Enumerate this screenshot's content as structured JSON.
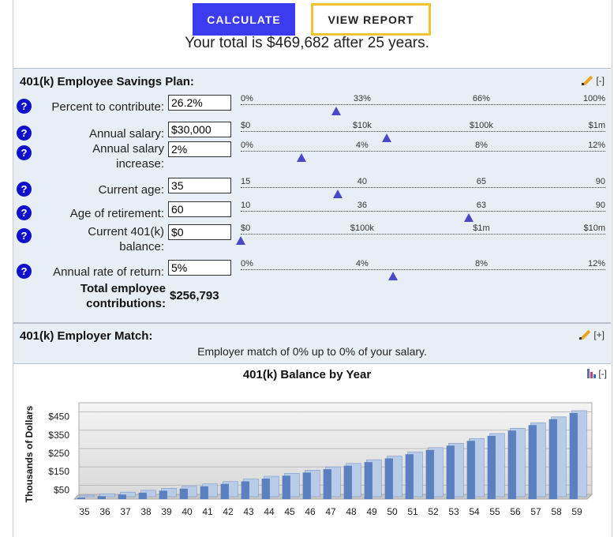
{
  "buttons": {
    "calculate": "CALCULATE",
    "view_report": "VIEW REPORT"
  },
  "summary": "Your total is $469,682 after 25 years.",
  "savings": {
    "title": "401(k) Employee Savings Plan:",
    "toggle": "[-]",
    "fields": [
      {
        "label": "Percent to contribute:",
        "value": "26.2%",
        "ticks": [
          "0%",
          "33%",
          "66%",
          "100%"
        ],
        "position": 0.262
      },
      {
        "label": "Annual salary:",
        "value": "$30,000",
        "ticks": [
          "$0",
          "$10k",
          "$100k",
          "$1m"
        ],
        "position": 0.4
      },
      {
        "label": "Annual salary increase:",
        "value": "2%",
        "ticks": [
          "0%",
          "4%",
          "8%",
          "12%"
        ],
        "position": 0.1667
      },
      {
        "label": "Current age:",
        "value": "35",
        "ticks": [
          "15",
          "40",
          "65",
          "90"
        ],
        "position": 0.2667
      },
      {
        "label": "Age of retirement:",
        "value": "60",
        "ticks": [
          "10",
          "36",
          "63",
          "90"
        ],
        "position": 0.625
      },
      {
        "label": "Current 401(k) balance:",
        "value": "$0",
        "ticks": [
          "$0",
          "$100k",
          "$1m",
          "$10m"
        ],
        "position": 0.0
      },
      {
        "label": "Annual rate of return:",
        "value": "5%",
        "ticks": [
          "0%",
          "4%",
          "8%",
          "12%"
        ],
        "position": 0.4167
      }
    ],
    "total_label": "Total employee contributions:",
    "total_value": "$256,793"
  },
  "match": {
    "title": "401(k) Employer Match:",
    "toggle": "[+]",
    "text": "Employer match of 0% up to 0% of your salary."
  },
  "chart_title": "401(k) Balance by Year",
  "chart_toggle": "[-]",
  "icons": {
    "help": "question-icon",
    "edit": "pencil-icon",
    "chart": "bar-chart-icon"
  },
  "colors": {
    "accent": "#3b3bf0",
    "report_border": "#f4c430",
    "help": "#1010cc",
    "bar": "#5a80c0",
    "bar_light": "#b8cce8",
    "slider_thumb": "#4848c8"
  },
  "chart_data": {
    "type": "bar",
    "title": "401(k) Balance by Year",
    "ylabel": "Thousands of Dollars",
    "xlabel": "",
    "categories": [
      "35",
      "36",
      "37",
      "38",
      "39",
      "40",
      "41",
      "42",
      "43",
      "44",
      "45",
      "46",
      "47",
      "48",
      "49",
      "50",
      "51",
      "52",
      "53",
      "54",
      "55",
      "56",
      "57",
      "58",
      "59"
    ],
    "series": [
      {
        "values": [
          8,
          16,
          25,
          35,
          46,
          57,
          70,
          83,
          97,
          112,
          128,
          145,
          163,
          182,
          202,
          222,
          245,
          268,
          292,
          318,
          345,
          374,
          404,
          436,
          470
        ]
      }
    ],
    "yticks": [
      "$50",
      "$150",
      "$250",
      "$350",
      "$450"
    ],
    "ylim": [
      0,
      500
    ],
    "grid": true,
    "legend": "none"
  }
}
